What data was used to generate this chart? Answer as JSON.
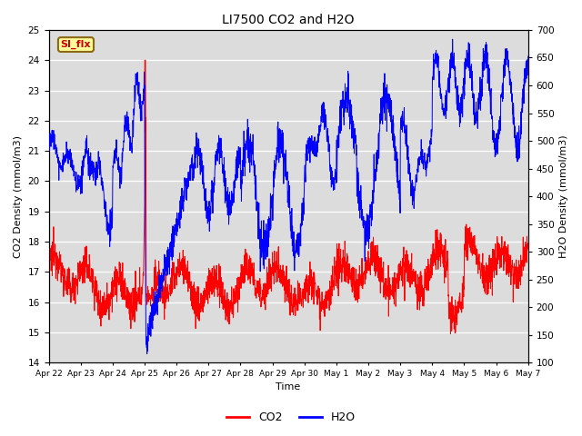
{
  "title": "LI7500 CO2 and H2O",
  "xlabel": "Time",
  "ylabel_left": "CO2 Density (mmol/m3)",
  "ylabel_right": "H2O Density (mmol/m3)",
  "ylim_left": [
    14.0,
    25.0
  ],
  "ylim_right": [
    100,
    700
  ],
  "yticks_left": [
    14.0,
    15.0,
    16.0,
    17.0,
    18.0,
    19.0,
    20.0,
    21.0,
    22.0,
    23.0,
    24.0,
    25.0
  ],
  "yticks_right": [
    100,
    150,
    200,
    250,
    300,
    350,
    400,
    450,
    500,
    550,
    600,
    650,
    700
  ],
  "xtick_labels": [
    "Apr 22",
    "Apr 23",
    "Apr 24",
    "Apr 25",
    "Apr 26",
    "Apr 27",
    "Apr 28",
    "Apr 29",
    "Apr 30",
    "May 1",
    "May 2",
    "May 3",
    "May 4",
    "May 5",
    "May 6",
    "May 7"
  ],
  "co2_color": "#ff0000",
  "h2o_color": "#0000ff",
  "bg_color": "#dcdcdc",
  "annotation_text": "SI_flx",
  "annotation_facecolor": "#ffff99",
  "annotation_edgecolor": "#8B6914",
  "annotation_textcolor": "#cc0000",
  "n_days": 15,
  "n_points": 2160
}
